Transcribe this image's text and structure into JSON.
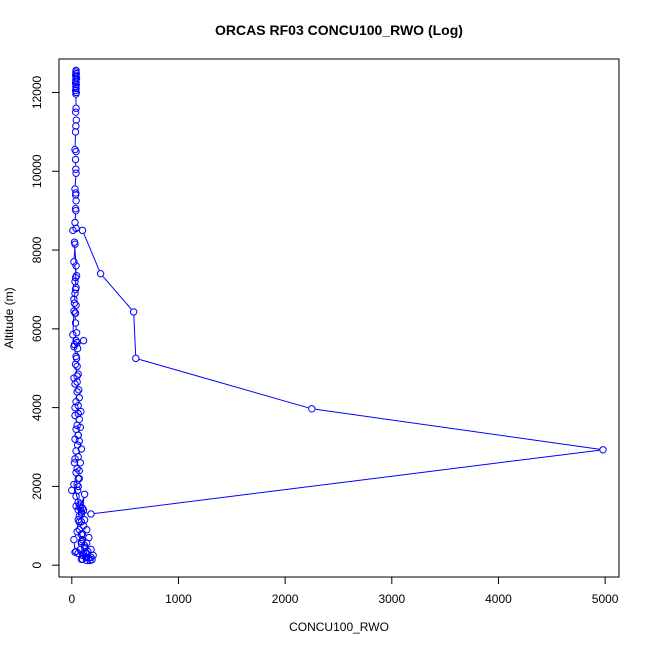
{
  "chart_data": {
    "type": "line",
    "title": "ORCAS RF03 CONCU100_RWO (Log)",
    "xlabel": "CONCU100_RWO",
    "ylabel": "Altitude (m)",
    "xlim": [
      -120,
      5130
    ],
    "ylim": [
      -300,
      12850
    ],
    "xticks": [
      0,
      1000,
      2000,
      3000,
      4000,
      5000
    ],
    "yticks": [
      0,
      2000,
      4000,
      6000,
      8000,
      10000,
      12000
    ],
    "grid": false,
    "legend": "none",
    "series_color": "#0000ff",
    "marker": "open-circle",
    "series": [
      {
        "points": [
          [
            40,
            12560
          ],
          [
            38,
            12520
          ],
          [
            42,
            12480
          ],
          [
            36,
            12440
          ],
          [
            40,
            12400
          ],
          [
            44,
            12360
          ],
          [
            38,
            12320
          ],
          [
            40,
            12280
          ],
          [
            35,
            12240
          ],
          [
            42,
            12200
          ],
          [
            38,
            12150
          ],
          [
            40,
            12100
          ],
          [
            36,
            12050
          ],
          [
            42,
            12000
          ],
          [
            38,
            11960
          ],
          [
            40,
            11600
          ],
          [
            36,
            11500
          ],
          [
            42,
            11300
          ],
          [
            38,
            11150
          ],
          [
            35,
            11000
          ],
          [
            30,
            10550
          ],
          [
            40,
            10500
          ],
          [
            35,
            10300
          ],
          [
            38,
            10050
          ],
          [
            40,
            9950
          ],
          [
            30,
            9550
          ],
          [
            38,
            9450
          ],
          [
            36,
            9400
          ],
          [
            40,
            9250
          ],
          [
            35,
            9050
          ],
          [
            38,
            9000
          ],
          [
            30,
            8700
          ],
          [
            40,
            8550
          ],
          [
            10,
            8500
          ],
          [
            100,
            8500
          ],
          [
            270,
            7400
          ],
          [
            580,
            6430
          ],
          [
            600,
            5250
          ],
          [
            2250,
            3970
          ],
          [
            4980,
            2930
          ],
          [
            180,
            1300
          ],
          [
            90,
            1350
          ],
          [
            60,
            1400
          ],
          [
            40,
            1500
          ],
          [
            60,
            1600
          ],
          [
            40,
            1750
          ],
          [
            55,
            1900
          ],
          [
            50,
            2050
          ],
          [
            60,
            2200
          ],
          [
            70,
            2400
          ],
          [
            80,
            2600
          ],
          [
            60,
            2750
          ],
          [
            90,
            2950
          ],
          [
            70,
            3150
          ],
          [
            60,
            3300
          ],
          [
            80,
            3500
          ],
          [
            70,
            3700
          ],
          [
            85,
            3900
          ],
          [
            60,
            4050
          ],
          [
            70,
            4250
          ],
          [
            65,
            4450
          ],
          [
            50,
            4650
          ],
          [
            60,
            4850
          ],
          [
            50,
            5050
          ],
          [
            45,
            5250
          ],
          [
            55,
            5500
          ],
          [
            40,
            5700
          ],
          [
            45,
            5900
          ],
          [
            35,
            6150
          ],
          [
            30,
            6400
          ],
          [
            25,
            6650
          ],
          [
            30,
            6900
          ],
          [
            40,
            7050
          ],
          [
            30,
            7200
          ],
          [
            35,
            7300
          ],
          [
            45,
            7350
          ],
          [
            20,
            7700
          ],
          [
            30,
            8150
          ],
          [
            25,
            8200
          ],
          [
            40,
            7600
          ],
          [
            35,
            7000
          ],
          [
            20,
            6750
          ],
          [
            40,
            6600
          ],
          [
            35,
            6400
          ],
          [
            20,
            6450
          ],
          [
            10,
            5850
          ],
          [
            25,
            5600
          ],
          [
            50,
            5650
          ],
          [
            110,
            5700
          ],
          [
            20,
            5550
          ],
          [
            40,
            5300
          ],
          [
            35,
            5100
          ],
          [
            50,
            4800
          ],
          [
            20,
            4750
          ],
          [
            30,
            4600
          ],
          [
            50,
            4400
          ],
          [
            40,
            4150
          ],
          [
            30,
            4000
          ],
          [
            60,
            3850
          ],
          [
            30,
            3800
          ],
          [
            50,
            3550
          ],
          [
            40,
            3450
          ],
          [
            60,
            3300
          ],
          [
            30,
            3200
          ],
          [
            55,
            3050
          ],
          [
            40,
            2900
          ],
          [
            30,
            2700
          ],
          [
            25,
            2600
          ],
          [
            50,
            2450
          ],
          [
            40,
            2350
          ],
          [
            70,
            2200
          ],
          [
            60,
            2000
          ],
          [
            0,
            1900
          ],
          [
            20,
            2050
          ],
          [
            70,
            1500
          ],
          [
            110,
            1400
          ],
          [
            90,
            1300
          ],
          [
            120,
            1150
          ],
          [
            70,
            1100
          ],
          [
            110,
            1000
          ],
          [
            140,
            900
          ],
          [
            100,
            800
          ],
          [
            160,
            700
          ],
          [
            90,
            600
          ],
          [
            120,
            500
          ],
          [
            80,
            400
          ],
          [
            40,
            350
          ],
          [
            110,
            300
          ],
          [
            200,
            250
          ],
          [
            160,
            180
          ],
          [
            90,
            150
          ],
          [
            130,
            200
          ],
          [
            60,
            300
          ],
          [
            30,
            330
          ],
          [
            20,
            650
          ],
          [
            50,
            850
          ],
          [
            60,
            1150
          ],
          [
            70,
            1250
          ],
          [
            80,
            1550
          ],
          [
            80,
            1450
          ],
          [
            120,
            1800
          ],
          [
            100,
            1450
          ],
          [
            90,
            1100
          ],
          [
            70,
            900
          ],
          [
            90,
            550
          ],
          [
            130,
            300
          ],
          [
            190,
            140
          ],
          [
            170,
            120
          ],
          [
            140,
            200
          ],
          [
            100,
            150
          ],
          [
            150,
            350
          ],
          [
            120,
            450
          ],
          [
            100,
            650
          ],
          [
            90,
            780
          ],
          [
            140,
            560
          ],
          [
            180,
            400
          ],
          [
            140,
            300
          ],
          [
            100,
            250
          ],
          [
            180,
            200
          ],
          [
            140,
            120
          ]
        ]
      }
    ]
  }
}
